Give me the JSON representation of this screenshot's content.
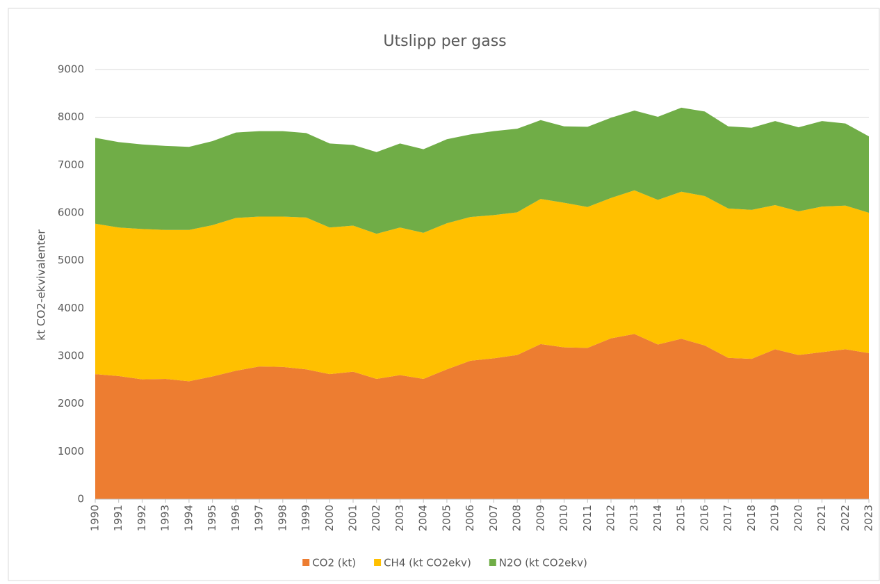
{
  "chart_data": {
    "type": "stacked_area",
    "title": "Utslipp per gass",
    "y_label": "kt CO2-ekvivalenter",
    "categories": [
      "1990",
      "1991",
      "1992",
      "1993",
      "1994",
      "1995",
      "1996",
      "1997",
      "1998",
      "1999",
      "2000",
      "2001",
      "2002",
      "2003",
      "2004",
      "2005",
      "2006",
      "2007",
      "2008",
      "2009",
      "2010",
      "2011",
      "2012",
      "2013",
      "2014",
      "2015",
      "2016",
      "2017",
      "2018",
      "2019",
      "2020",
      "2021",
      "2022",
      "2023"
    ],
    "series": [
      {
        "name": "CO2 (kt)",
        "color": "#ed7d31",
        "values": [
          2620,
          2580,
          2510,
          2520,
          2470,
          2570,
          2690,
          2780,
          2770,
          2720,
          2620,
          2670,
          2520,
          2600,
          2520,
          2720,
          2900,
          2950,
          3020,
          3250,
          3180,
          3170,
          3370,
          3460,
          3240,
          3360,
          3220,
          2960,
          2940,
          3140,
          3020,
          3080,
          3140,
          3060
        ]
      },
      {
        "name": "CH4 (kt CO2ekv)",
        "color": "#ffc000",
        "values": [
          3150,
          3110,
          3150,
          3120,
          3170,
          3170,
          3200,
          3140,
          3150,
          3180,
          3070,
          3060,
          3040,
          3090,
          3060,
          3060,
          3010,
          3000,
          2990,
          3040,
          3030,
          2950,
          2940,
          3010,
          3030,
          3080,
          3130,
          3130,
          3120,
          3020,
          3010,
          3050,
          3010,
          2940
        ]
      },
      {
        "name": "N2O (kt CO2ekv)",
        "color": "#70ad47",
        "values": [
          1800,
          1790,
          1770,
          1760,
          1740,
          1760,
          1790,
          1790,
          1790,
          1770,
          1760,
          1690,
          1710,
          1760,
          1750,
          1760,
          1730,
          1760,
          1750,
          1650,
          1600,
          1680,
          1680,
          1670,
          1740,
          1760,
          1770,
          1720,
          1720,
          1760,
          1760,
          1790,
          1720,
          1600
        ]
      }
    ],
    "ylim": [
      0,
      9000
    ],
    "yticks": [
      0,
      1000,
      2000,
      3000,
      4000,
      5000,
      6000,
      7000,
      8000,
      9000
    ],
    "grid": true,
    "legend": "bottom"
  }
}
